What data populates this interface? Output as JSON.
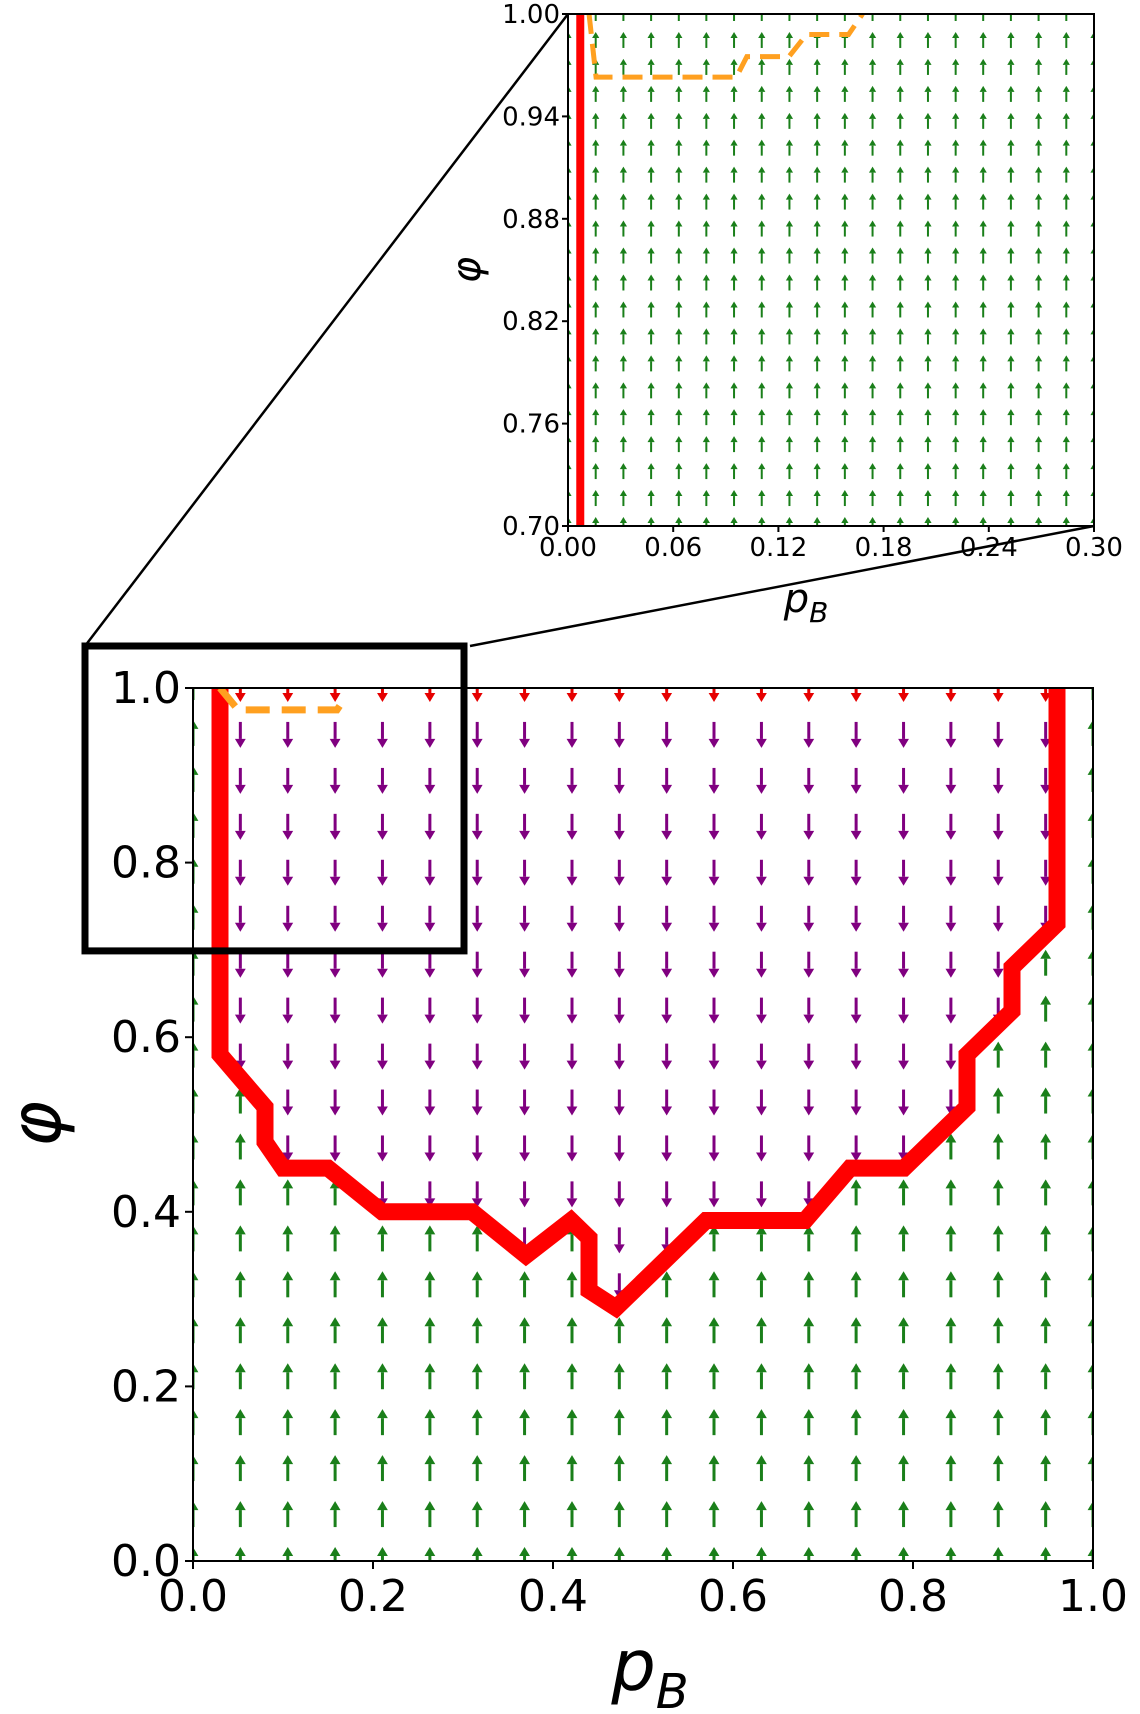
{
  "chart_data": [
    {
      "type": "line",
      "panel": "main",
      "xlabel": "p",
      "xlabel_sub": "B",
      "ylabel": "φ",
      "xlim": [
        0.0,
        1.0
      ],
      "ylim": [
        0.0,
        1.0
      ],
      "xticks": [
        "0.0",
        "0.2",
        "0.4",
        "0.6",
        "0.8",
        "1.0"
      ],
      "yticks": [
        "0.0",
        "0.2",
        "0.4",
        "0.6",
        "0.8",
        "1.0"
      ],
      "grid": false,
      "legend": "none",
      "vector_field": {
        "x": [
          0.0,
          0.0526,
          0.1053,
          0.1579,
          0.2105,
          0.2632,
          0.3158,
          0.3684,
          0.4211,
          0.4737,
          0.5263,
          0.5789,
          0.6316,
          0.6842,
          0.7368,
          0.7895,
          0.8421,
          0.8947,
          0.9474,
          1.0
        ],
        "y": [
          0.0,
          0.0526,
          0.1053,
          0.1579,
          0.2105,
          0.2632,
          0.3158,
          0.3684,
          0.4211,
          0.4737,
          0.5263,
          0.5789,
          0.6316,
          0.6842,
          0.7368,
          0.7895,
          0.8421,
          0.8947,
          0.9474,
          1.0
        ],
        "up_color": "#1a7f1a",
        "down_color": "#800080",
        "near_zero_color": "#e60000"
      },
      "series": [
        {
          "style": "solid",
          "color": "#ff0000",
          "x": [
            0.03,
            0.03,
            0.03,
            0.08,
            0.08,
            0.1,
            0.15,
            0.21,
            0.31,
            0.37,
            0.42,
            0.44,
            0.44,
            0.47,
            0.57,
            0.68,
            0.73,
            0.79,
            0.86,
            0.86,
            0.91,
            0.91,
            0.96,
            0.96
          ],
          "y": [
            1.0,
            0.7,
            0.58,
            0.52,
            0.48,
            0.45,
            0.45,
            0.4,
            0.4,
            0.35,
            0.39,
            0.37,
            0.31,
            0.29,
            0.39,
            0.39,
            0.45,
            0.45,
            0.52,
            0.58,
            0.63,
            0.68,
            0.73,
            1.0
          ]
        },
        {
          "style": "dashed",
          "color": "#ffa020",
          "x": [
            0.03,
            0.05,
            0.16,
            0.17
          ],
          "y": [
            1.0,
            0.975,
            0.975,
            0.99
          ]
        }
      ],
      "zoom_box": {
        "x": [
          0.0,
          0.3
        ],
        "y": [
          0.7,
          1.0
        ]
      }
    },
    {
      "type": "line",
      "panel": "inset",
      "xlabel": "p",
      "xlabel_sub": "B",
      "ylabel": "φ",
      "xlim": [
        0.0,
        0.3
      ],
      "ylim": [
        0.7,
        1.0
      ],
      "xticks": [
        "0.00",
        "0.06",
        "0.12",
        "0.18",
        "0.24",
        "0.30"
      ],
      "yticks": [
        "0.70",
        "0.76",
        "0.82",
        "0.88",
        "0.94",
        "1.00"
      ],
      "grid": false,
      "legend": "none",
      "vector_field": {
        "x": [
          0.0,
          0.0158,
          0.0316,
          0.0474,
          0.0632,
          0.0789,
          0.0947,
          0.1105,
          0.1263,
          0.1421,
          0.1579,
          0.1737,
          0.1895,
          0.2053,
          0.2211,
          0.2368,
          0.2526,
          0.2684,
          0.2842,
          0.3
        ],
        "y": [
          0.7,
          0.7158,
          0.7316,
          0.7474,
          0.7632,
          0.7789,
          0.7947,
          0.8105,
          0.8263,
          0.8421,
          0.8579,
          0.8737,
          0.8895,
          0.9053,
          0.9211,
          0.9368,
          0.9526,
          0.9684,
          0.9842,
          1.0
        ],
        "up_color": "#1a7f1a",
        "down_color": "#800080",
        "near_zero_color": "#e60000"
      },
      "series": [
        {
          "style": "solid",
          "color": "#ff0000",
          "x": [
            0.007,
            0.007
          ],
          "y": [
            0.7,
            1.0
          ]
        },
        {
          "style": "dashed",
          "color": "#ffa020",
          "x": [
            0.012,
            0.016,
            0.096,
            0.102,
            0.126,
            0.136,
            0.16,
            0.168
          ],
          "y": [
            1.0,
            0.963,
            0.963,
            0.975,
            0.975,
            0.988,
            0.988,
            1.0
          ]
        }
      ]
    }
  ]
}
